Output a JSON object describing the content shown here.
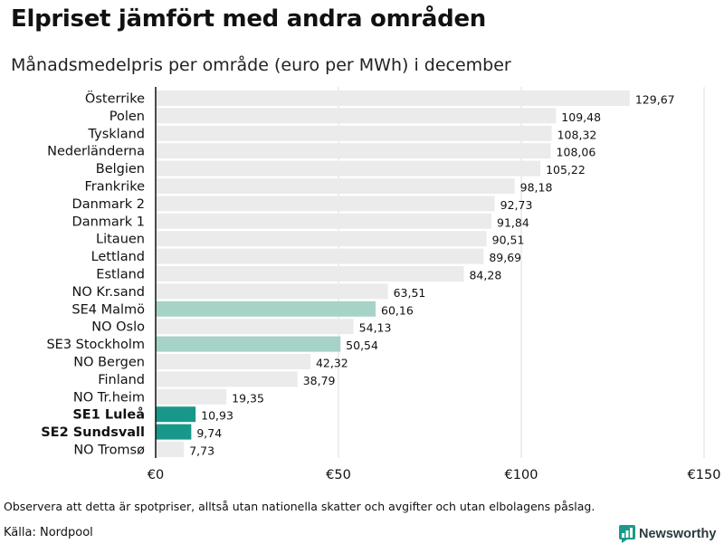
{
  "title": "Elpriset jämfört med andra områden",
  "subtitle": "Månadsmedelpris per område (euro per MWh) i december",
  "footnote": "Observera att detta är spotpriser, alltså utan nationella skatter och avgifter och utan elbolagens påslag.",
  "source": "Källa: Nordpool",
  "brand": {
    "name": "Newsworthy",
    "icon": "newsworthy-logo-icon",
    "color": "#1a9a8a"
  },
  "colors": {
    "default_bar": "#ebebeb",
    "highlight_light": "#a6d2c8",
    "highlight_strong": "#18988a",
    "grid": "#dddddd",
    "axis": "#111111"
  },
  "chart_data": {
    "type": "bar",
    "orientation": "horizontal",
    "title": "Elpriset jämfört med andra områden",
    "subtitle": "Månadsmedelpris per område (euro per MWh) i december",
    "xlabel": "",
    "ylabel": "",
    "xlim": [
      0,
      150
    ],
    "x_ticks": [
      0,
      50,
      100,
      150
    ],
    "x_tick_labels": [
      "€0",
      "€50",
      "€100",
      "€150"
    ],
    "grid": true,
    "categories": [
      "Österrike",
      "Polen",
      "Tyskland",
      "Nederländerna",
      "Belgien",
      "Frankrike",
      "Danmark  2",
      "Danmark  1",
      "Litauen",
      "Lettland",
      "Estland",
      "NO Kr.sand",
      "SE4  Malmö",
      "NO Oslo",
      "SE3  Stockholm",
      "NO Bergen",
      "Finland",
      "NO Tr.heim",
      "SE1 Luleå",
      "SE2 Sundsvall",
      "NO Tromsø"
    ],
    "values": [
      129.67,
      109.48,
      108.32,
      108.06,
      105.22,
      98.18,
      92.73,
      91.84,
      90.51,
      89.69,
      84.28,
      63.51,
      60.16,
      54.13,
      50.54,
      42.32,
      38.79,
      19.35,
      10.93,
      9.74,
      7.73
    ],
    "value_labels": [
      "129,67",
      "109,48",
      "108,32",
      "108,06",
      "105,22",
      "98,18",
      "92,73",
      "91,84",
      "90,51",
      "89,69",
      "84,28",
      "63,51",
      "60,16",
      "54,13",
      "50,54",
      "42,32",
      "38,79",
      "19,35",
      "10,93",
      "9,74",
      "7,73"
    ],
    "highlight": [
      "none",
      "none",
      "none",
      "none",
      "none",
      "none",
      "none",
      "none",
      "none",
      "none",
      "none",
      "none",
      "light",
      "none",
      "light",
      "none",
      "none",
      "none",
      "strong",
      "strong",
      "none"
    ],
    "bold_labels": [
      false,
      false,
      false,
      false,
      false,
      false,
      false,
      false,
      false,
      false,
      false,
      false,
      false,
      false,
      false,
      false,
      false,
      false,
      true,
      true,
      false
    ]
  }
}
